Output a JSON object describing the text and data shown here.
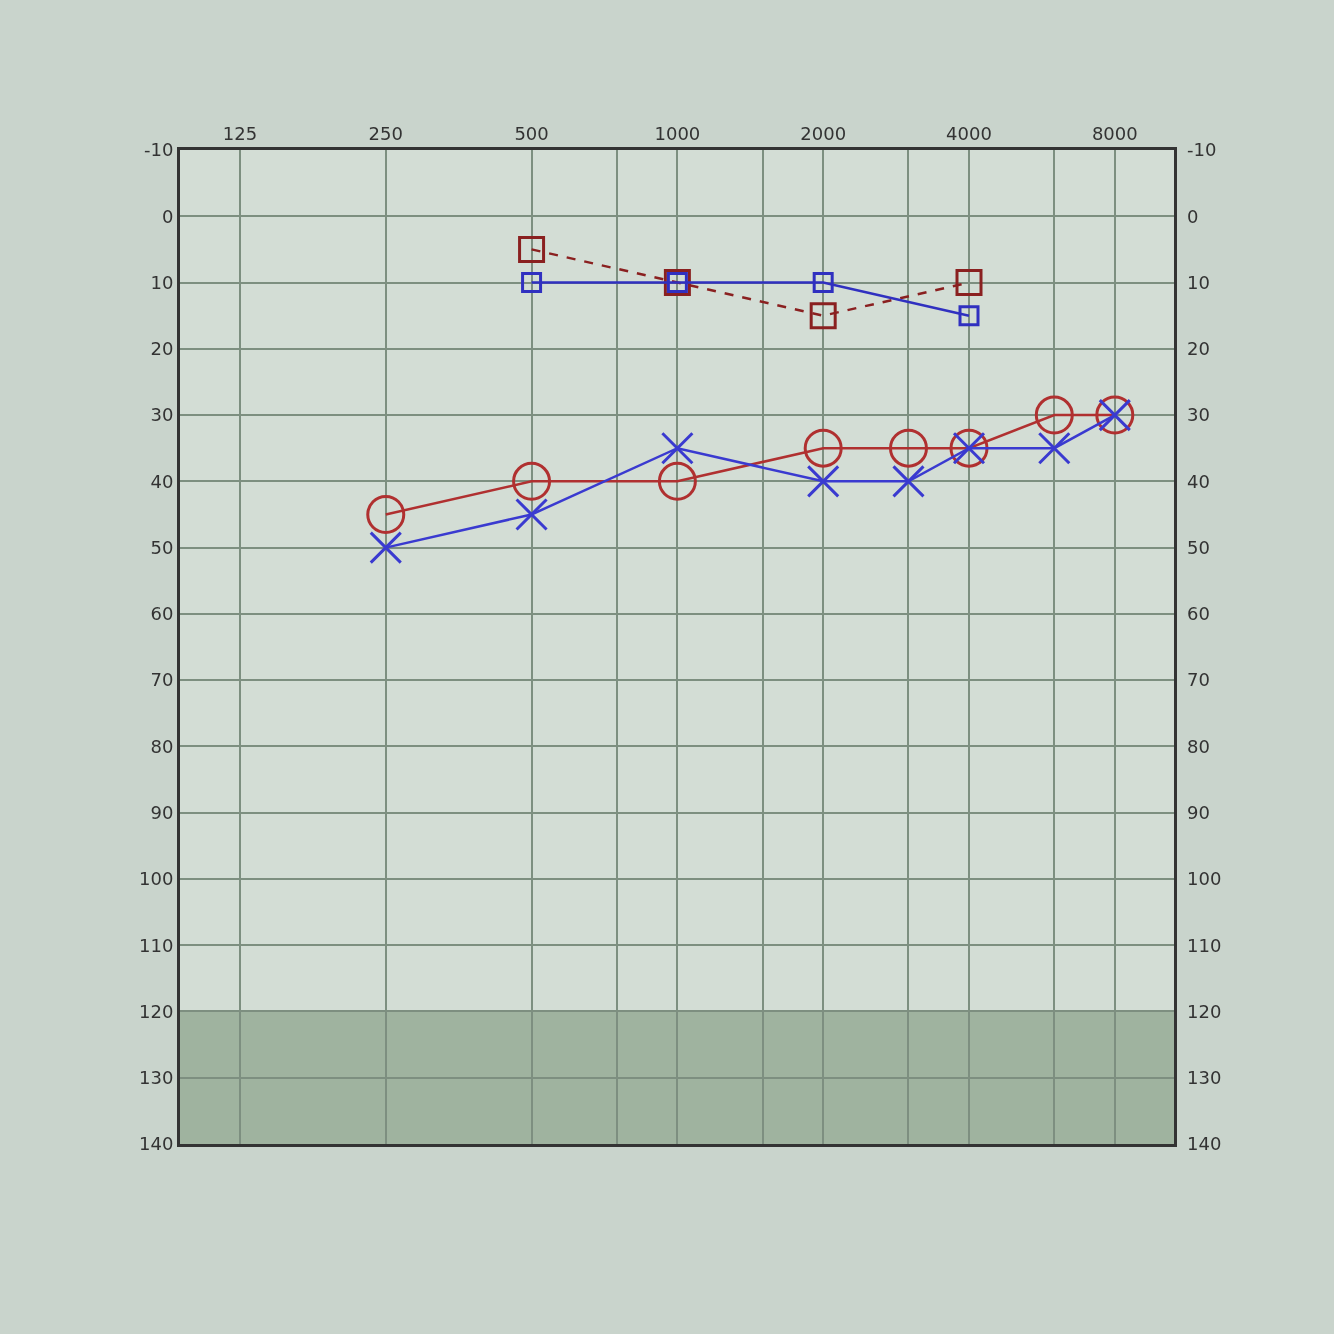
{
  "chart_data": {
    "type": "line",
    "xlim": [
      94,
      10600
    ],
    "log": "x",
    "xticks": [
      125,
      250,
      500,
      {
        "value": 750,
        "label": null
      },
      1000,
      {
        "value": 1500,
        "label": null
      },
      2000,
      {
        "value": 3000,
        "label": null
      },
      4000,
      {
        "value": 6000,
        "label": null
      },
      8000
    ],
    "ylim": [
      140,
      -10
    ],
    "yticks": [
      -10,
      0,
      10,
      20,
      30,
      40,
      50,
      60,
      70,
      80,
      90,
      100,
      110,
      120,
      130,
      140
    ],
    "y2lim": [
      140,
      -10
    ],
    "y2ticks": [
      -10,
      0,
      10,
      20,
      30,
      40,
      50,
      60,
      70,
      80,
      90,
      100,
      110,
      120,
      130,
      140
    ],
    "grid": true,
    "bands": [
      {
        "axis": "y",
        "from": 120,
        "to": 140,
        "color": "#9fb39f"
      }
    ],
    "series": [
      {
        "color": "#b03030",
        "marker": "circle",
        "line_style": "solid",
        "x": [
          250,
          500,
          1000,
          2000,
          3000,
          4000,
          6000,
          8000
        ],
        "values": [
          45,
          40,
          40,
          35,
          35,
          35,
          30,
          30
        ]
      },
      {
        "color": "#3a3ad0",
        "marker": "cross",
        "line_style": "solid",
        "x": [
          250,
          500,
          1000,
          2000,
          3000,
          4000,
          6000,
          8000
        ],
        "values": [
          50,
          45,
          35,
          40,
          40,
          35,
          35,
          30
        ]
      },
      {
        "color": "#8a2020",
        "marker": "square",
        "line_style": "dashed",
        "x": [
          500,
          1000,
          2000,
          4000
        ],
        "values": [
          5,
          10,
          15,
          10
        ]
      },
      {
        "color": "#3030c0",
        "marker": "square",
        "line_style": "solid",
        "x": [
          500,
          1000,
          2000,
          4000
        ],
        "values": [
          10,
          10,
          10,
          15
        ]
      }
    ]
  }
}
